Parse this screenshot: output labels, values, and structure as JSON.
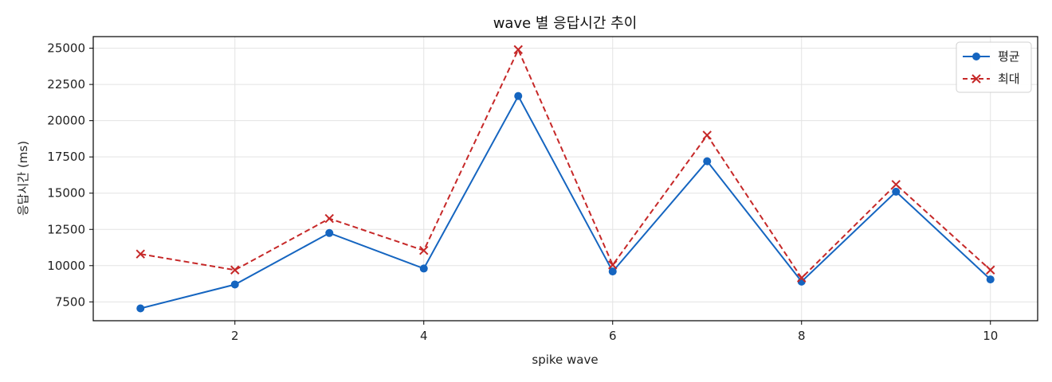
{
  "chart_data": {
    "type": "line",
    "title": "wave 별 응답시간 추이",
    "xlabel": "spike wave",
    "ylabel": "응답시간 (ms)",
    "x": [
      1,
      2,
      3,
      4,
      5,
      6,
      7,
      8,
      9,
      10
    ],
    "xlim": [
      0.5,
      10.5
    ],
    "ylim": [
      6200,
      25800
    ],
    "xticks": [
      2,
      4,
      6,
      8,
      10
    ],
    "yticks": [
      7500,
      10000,
      12500,
      15000,
      17500,
      20000,
      22500,
      25000
    ],
    "grid": true,
    "legend_position": "top-right",
    "series": [
      {
        "name": "평균",
        "color": "#1565c0",
        "line_style": "solid",
        "marker": "circle",
        "values": [
          7050,
          8700,
          12250,
          9800,
          21700,
          9600,
          17200,
          8900,
          15100,
          9050
        ]
      },
      {
        "name": "최대",
        "color": "#c62828",
        "line_style": "dashed",
        "marker": "x",
        "values": [
          10800,
          9700,
          13250,
          11050,
          24900,
          10050,
          19000,
          9150,
          15600,
          9700
        ]
      }
    ]
  }
}
